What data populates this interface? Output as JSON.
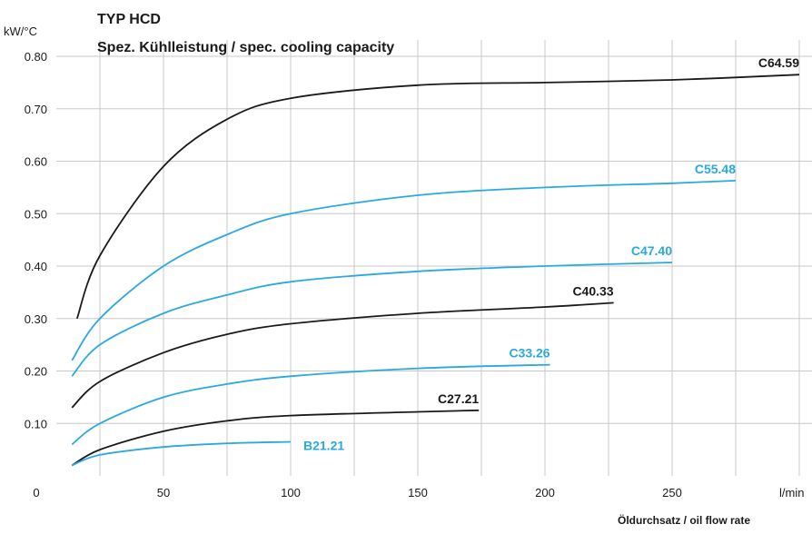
{
  "chart_data": {
    "type": "line",
    "title": "TYP HCD",
    "subtitle": "Spez. Kühlleistung / spec. cooling capacity",
    "ylabel": "kW/°C",
    "xlabel": "Öldurchsatz / oil flow rate",
    "xunit": "l/min",
    "xlim": [
      0,
      300
    ],
    "ylim": [
      0,
      0.85
    ],
    "grid": true,
    "colors": {
      "black": "#1a1a1a",
      "blue": "#29a9e1",
      "grid": "#c8c8c8"
    },
    "x_ticks": [
      {
        "value": 0,
        "label": "0"
      },
      {
        "value": 50,
        "label": "50"
      },
      {
        "value": 100,
        "label": "100"
      },
      {
        "value": 150,
        "label": "150"
      },
      {
        "value": 200,
        "label": "200"
      },
      {
        "value": 250,
        "label": "250"
      }
    ],
    "y_ticks": [
      {
        "value": 0.1,
        "label": "0.10"
      },
      {
        "value": 0.2,
        "label": "0.20"
      },
      {
        "value": 0.3,
        "label": "0.30"
      },
      {
        "value": 0.4,
        "label": "0.40"
      },
      {
        "value": 0.5,
        "label": "0.50"
      },
      {
        "value": 0.6,
        "label": "0.60"
      },
      {
        "value": 0.7,
        "label": "0.70"
      },
      {
        "value": 0.8,
        "label": "0.80"
      }
    ],
    "series": [
      {
        "name": "C64.59",
        "color": "black",
        "x": [
          16,
          25,
          50,
          75,
          100,
          150,
          200,
          250,
          300
        ],
        "y": [
          0.3,
          0.42,
          0.59,
          0.68,
          0.72,
          0.745,
          0.75,
          0.755,
          0.765
        ]
      },
      {
        "name": "C55.48",
        "color": "blue",
        "x": [
          14,
          25,
          50,
          75,
          100,
          150,
          200,
          250,
          275
        ],
        "y": [
          0.22,
          0.3,
          0.4,
          0.46,
          0.5,
          0.535,
          0.55,
          0.558,
          0.563
        ]
      },
      {
        "name": "C47.40",
        "color": "blue",
        "x": [
          14,
          25,
          50,
          75,
          100,
          150,
          200,
          250
        ],
        "y": [
          0.19,
          0.25,
          0.31,
          0.345,
          0.37,
          0.39,
          0.4,
          0.407
        ]
      },
      {
        "name": "C40.33",
        "color": "black",
        "x": [
          14,
          25,
          50,
          75,
          100,
          150,
          200,
          227
        ],
        "y": [
          0.13,
          0.18,
          0.235,
          0.27,
          0.29,
          0.31,
          0.322,
          0.33
        ]
      },
      {
        "name": "C33.26",
        "color": "blue",
        "x": [
          14,
          25,
          50,
          75,
          100,
          150,
          202
        ],
        "y": [
          0.06,
          0.1,
          0.15,
          0.175,
          0.19,
          0.205,
          0.212
        ]
      },
      {
        "name": "C27.21",
        "color": "black",
        "x": [
          14,
          25,
          50,
          75,
          100,
          150,
          174
        ],
        "y": [
          0.02,
          0.05,
          0.085,
          0.105,
          0.115,
          0.122,
          0.125
        ]
      },
      {
        "name": "B21.21",
        "color": "blue",
        "x": [
          14,
          25,
          50,
          75,
          100
        ],
        "y": [
          0.02,
          0.04,
          0.055,
          0.062,
          0.065
        ]
      }
    ]
  }
}
